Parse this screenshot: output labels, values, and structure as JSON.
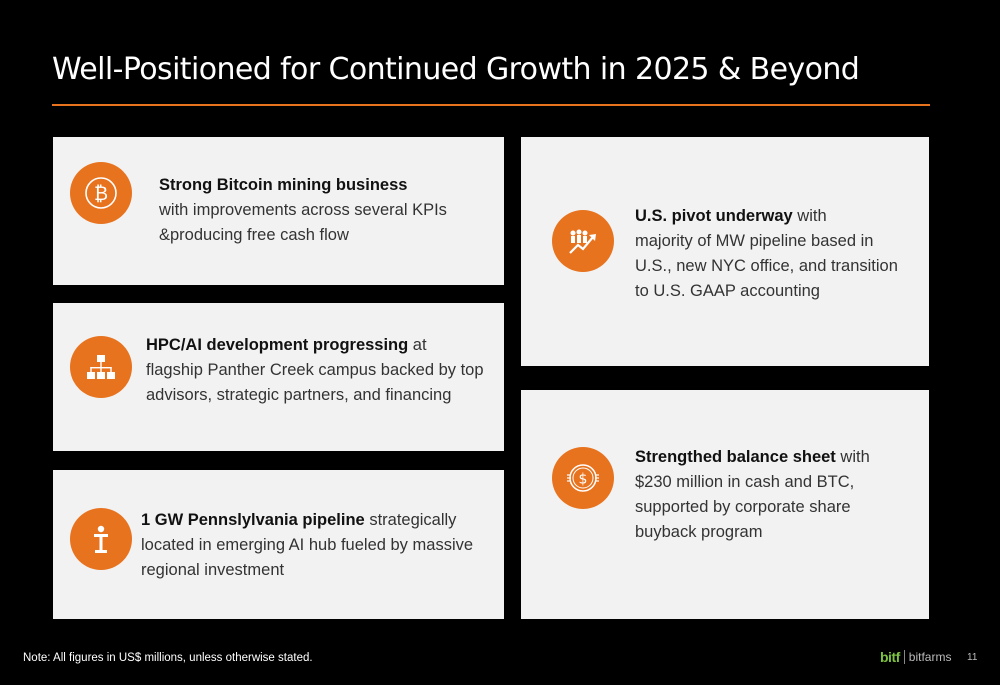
{
  "slide": {
    "title": "Well-Positioned for Continued Growth in 2025 & Beyond",
    "accent_color": "#e8731f",
    "background_color": "#000000",
    "card_color": "#f2f2f2"
  },
  "cards": [
    {
      "icon": "bitcoin-icon",
      "heading": "Strong Bitcoin mining business",
      "line1": "with improvements across several KPIs",
      "line2": "&producing free cash flow"
    },
    {
      "icon": "hierarchy-icon",
      "heading": "HPC/AI development progressing",
      "heading_suffix": " at",
      "line1": "flagship Panther Creek campus backed by top",
      "line2": "advisors, strategic partners, and financing"
    },
    {
      "icon": "podium-icon",
      "heading": "1 GW Pennslylvania pipeline",
      "heading_suffix": " strategically",
      "line1": "located in emerging AI hub fueled by massive",
      "line2": "regional investment"
    },
    {
      "icon": "growth-people-icon",
      "heading": "U.S. pivot underway",
      "heading_suffix": " with",
      "line1": "majority of MW pipeline based in",
      "line2": "U.S., new NYC office, and transition",
      "line3": "to U.S. GAAP accounting"
    },
    {
      "icon": "dollar-coin-icon",
      "heading": "Strengthed balance sheet",
      "heading_suffix": " with",
      "line1": "$230 million in cash and BTC,",
      "line2": "supported by corporate share",
      "line3": "buyback program"
    }
  ],
  "footer": {
    "note": "Note: All figures in US$ millions, unless otherwise stated.",
    "logo_mark": "bitf",
    "logo_text": "bitfarms",
    "page_number": "11"
  }
}
